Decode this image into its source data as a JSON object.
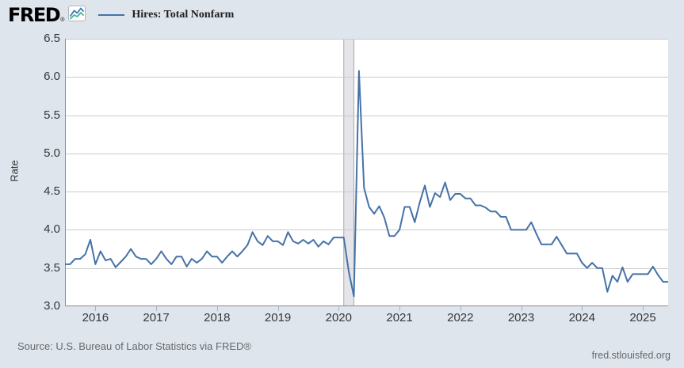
{
  "header": {
    "logo_text": "FRED",
    "registered_mark": "®",
    "legend_label": "Hires: Total Nonfarm"
  },
  "y_axis": {
    "title": "Rate",
    "tick_labels": [
      "6.5",
      "6.0",
      "5.5",
      "5.0",
      "4.5",
      "4.0",
      "3.5",
      "3.0"
    ],
    "min": 3.0,
    "max": 6.5
  },
  "x_axis": {
    "tick_labels": [
      "2016",
      "2017",
      "2018",
      "2019",
      "2020",
      "2021",
      "2022",
      "2023",
      "2024",
      "2025"
    ]
  },
  "footer": {
    "source": "Source: U.S. Bureau of Labor Statistics via FRED®",
    "site": "fred.stlouisfed.org"
  },
  "colors": {
    "accent_line": "#4572a7",
    "background": "#dfe5ec",
    "plot_background": "#ffffff",
    "gridline": "#cbcbcb",
    "axis": "#8c8c8c",
    "tick": "#a9b4bf",
    "recession_band_fill": "#e4e4e9",
    "recession_band_edge": "#ababab",
    "icon_blue": "#3a7abf",
    "icon_green": "#45b58a"
  },
  "chart_data": {
    "type": "line",
    "title": "Hires: Total Nonfarm",
    "xlabel": "",
    "ylabel": "Rate",
    "ylim": [
      3.0,
      6.5
    ],
    "y_gridline_interval": 0.5,
    "x_start": "2015-07",
    "x_end": "2025-06",
    "frequency": "monthly",
    "legend_position": "top-left",
    "grid": true,
    "recession_band": {
      "start": "2020-02",
      "end": "2020-04"
    },
    "series": [
      {
        "name": "Hires: Total Nonfarm",
        "color": "#4572a7",
        "values": [
          3.55,
          3.55,
          3.62,
          3.62,
          3.68,
          3.87,
          3.55,
          3.72,
          3.6,
          3.62,
          3.51,
          3.58,
          3.65,
          3.75,
          3.65,
          3.62,
          3.62,
          3.55,
          3.62,
          3.72,
          3.62,
          3.55,
          3.65,
          3.65,
          3.52,
          3.62,
          3.57,
          3.62,
          3.72,
          3.65,
          3.65,
          3.57,
          3.65,
          3.72,
          3.65,
          3.72,
          3.8,
          3.97,
          3.85,
          3.8,
          3.92,
          3.85,
          3.85,
          3.8,
          3.97,
          3.85,
          3.82,
          3.87,
          3.82,
          3.87,
          3.78,
          3.85,
          3.81,
          3.9,
          3.9,
          3.9,
          3.45,
          3.13,
          6.08,
          4.55,
          4.3,
          4.21,
          4.31,
          4.16,
          3.92,
          3.92,
          4.0,
          4.3,
          4.3,
          4.1,
          4.36,
          4.58,
          4.3,
          4.48,
          4.43,
          4.62,
          4.39,
          4.47,
          4.47,
          4.41,
          4.41,
          4.32,
          4.32,
          4.29,
          4.24,
          4.24,
          4.17,
          4.17,
          4.0,
          4.0,
          4.0,
          4.0,
          4.1,
          3.95,
          3.81,
          3.81,
          3.81,
          3.91,
          3.8,
          3.69,
          3.69,
          3.69,
          3.57,
          3.5,
          3.57,
          3.5,
          3.5,
          3.19,
          3.4,
          3.32,
          3.51,
          3.32,
          3.42,
          3.42,
          3.42,
          3.42,
          3.52,
          3.41,
          3.32,
          3.32
        ]
      }
    ]
  }
}
